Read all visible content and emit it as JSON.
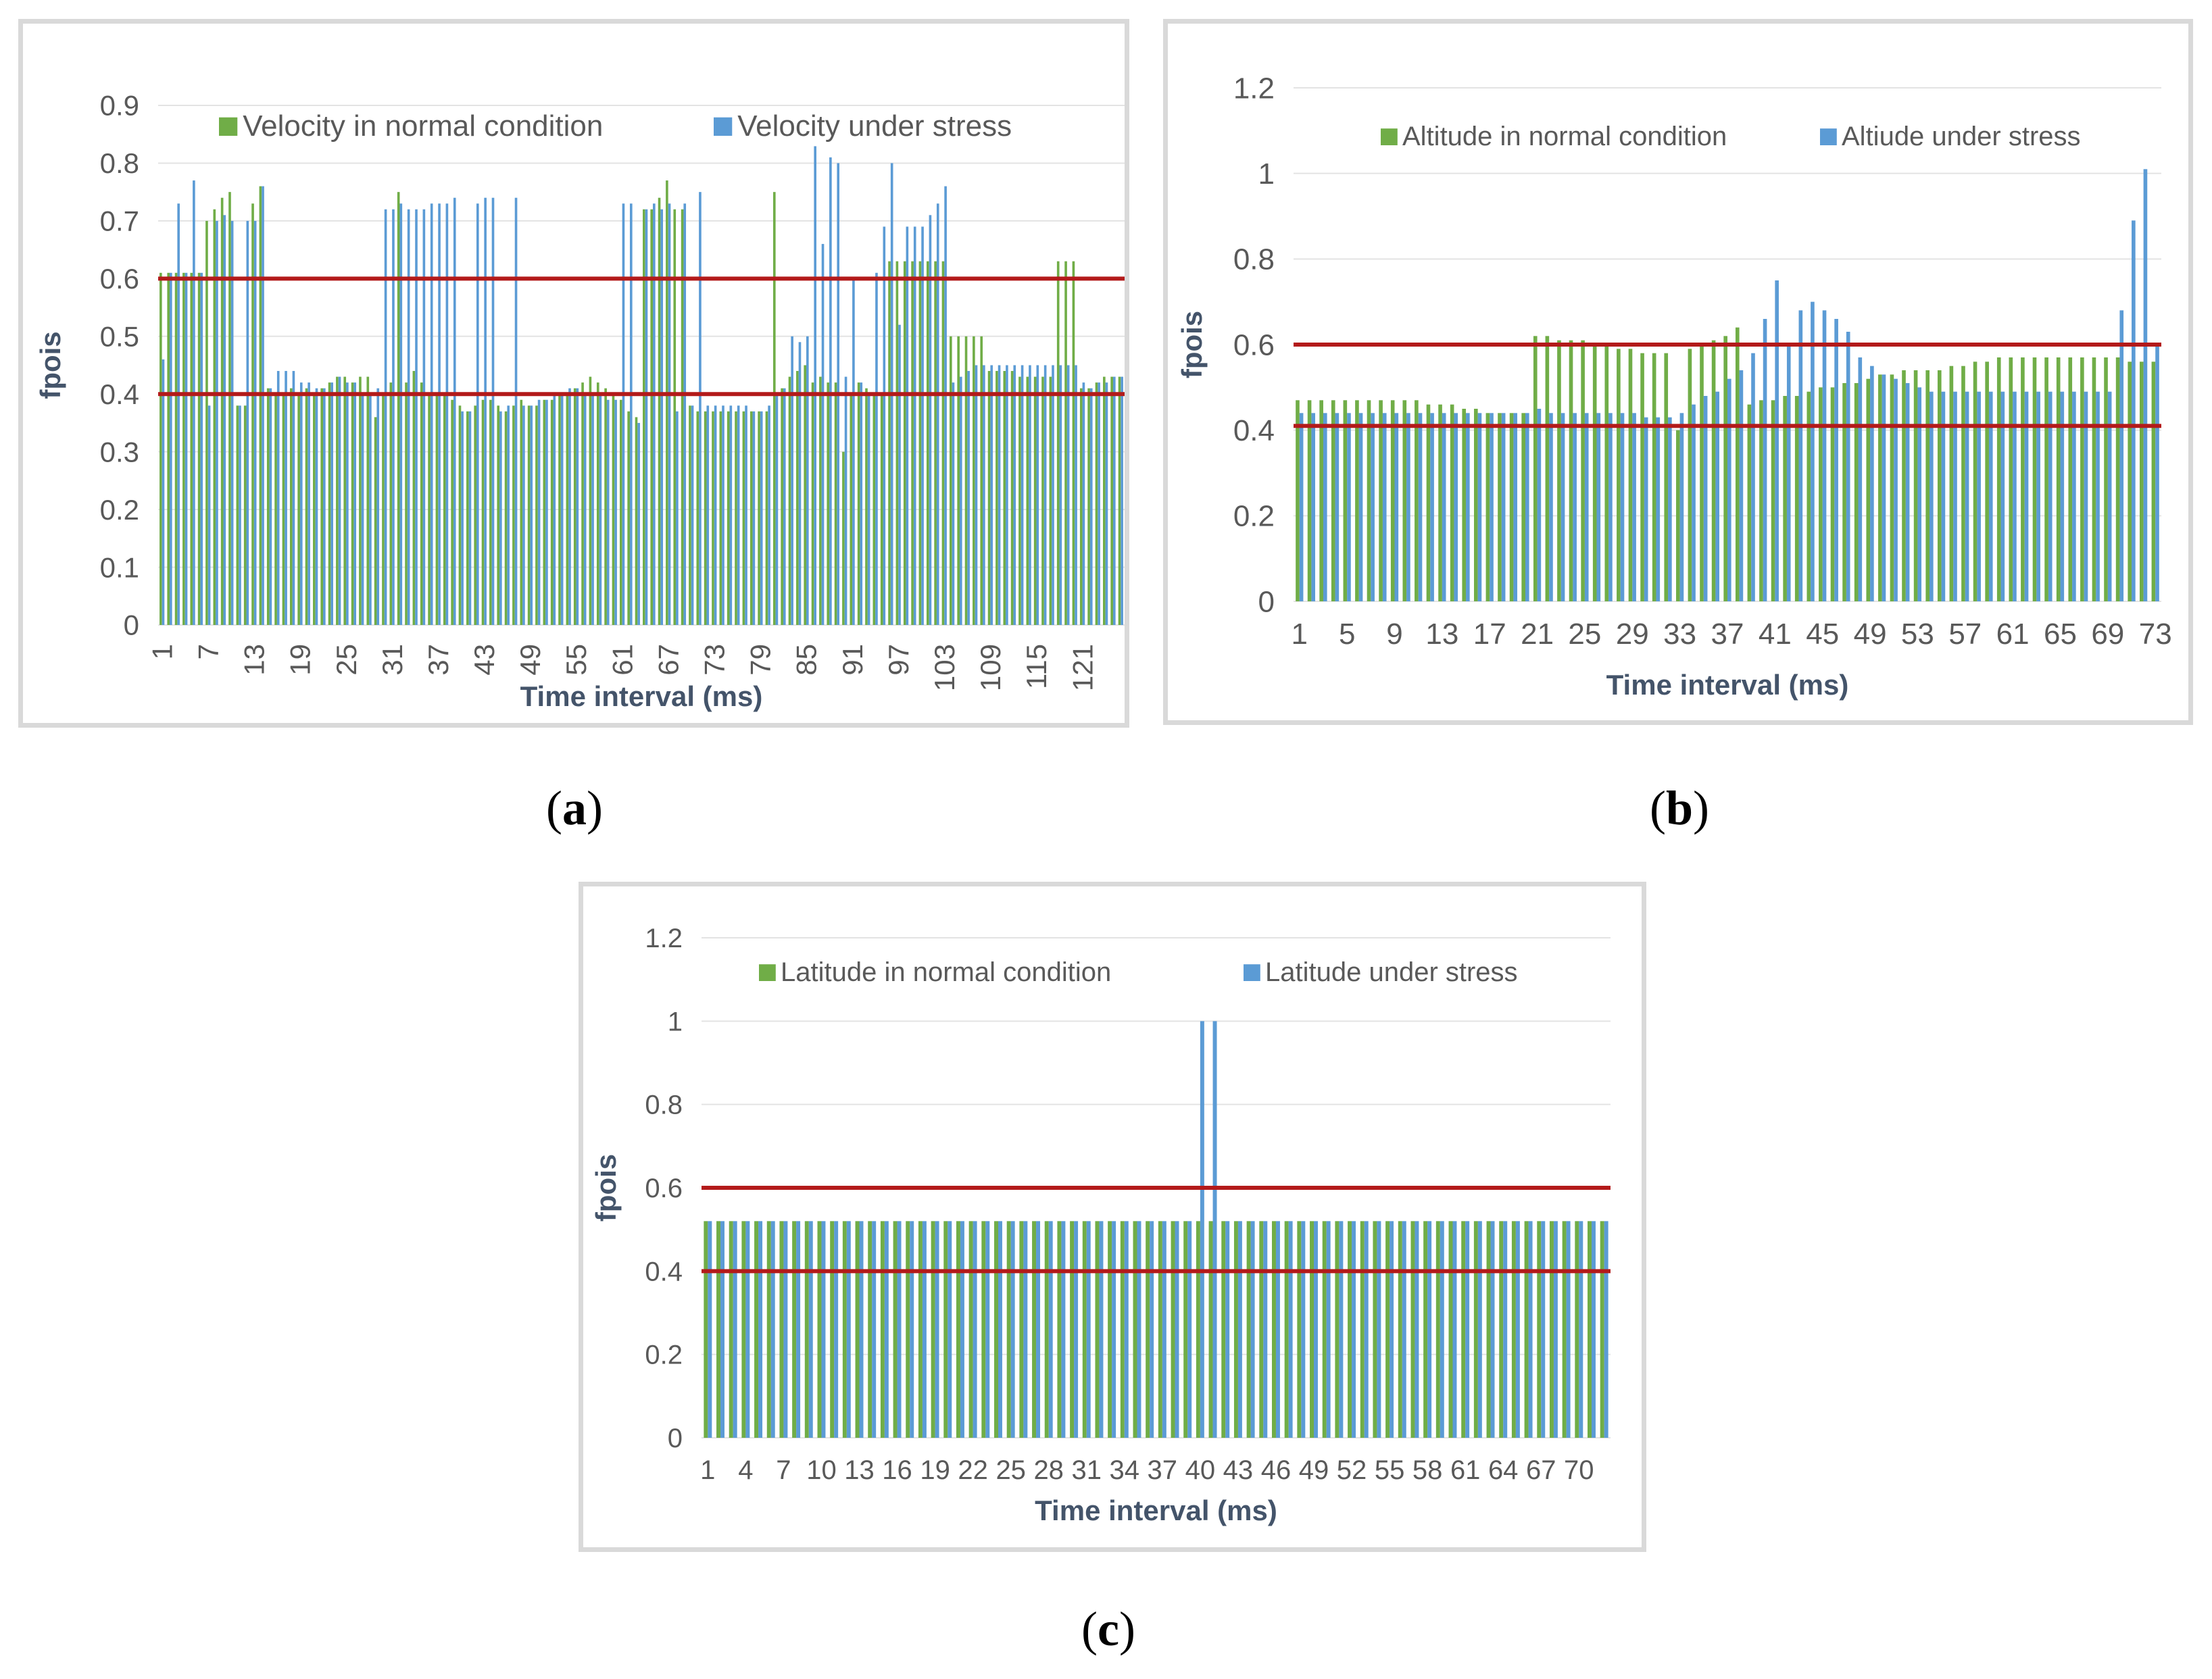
{
  "colors": {
    "normal": "#70ad47",
    "stress": "#5b9bd5",
    "threshold": "#b31a1a",
    "grid": "#e3e3e3",
    "text": "#595959",
    "axisTitle": "#44546a"
  },
  "chart_data": [
    {
      "id": "a",
      "type": "bar",
      "caption": "a",
      "xlabel": "Time interval (ms)",
      "ylabel": "fpois",
      "ylim": [
        0,
        0.9
      ],
      "yticks": [
        "0",
        "0.1",
        "0.2",
        "0.3",
        "0.4",
        "0.5",
        "0.6",
        "0.7",
        "0.8",
        "0.9"
      ],
      "xtick_labels": [
        "1",
        "7",
        "13",
        "19",
        "25",
        "31",
        "37",
        "43",
        "49",
        "55",
        "61",
        "67",
        "73",
        "79",
        "85",
        "91",
        "97",
        "103",
        "109",
        "115",
        "121"
      ],
      "xtick_every": 6,
      "thresholds": [
        0.4,
        0.6
      ],
      "legend": "top",
      "series": [
        {
          "name": "Velocity in normal condition",
          "values": [
            0.61,
            0.61,
            0.61,
            0.61,
            0.61,
            0.61,
            0.7,
            0.72,
            0.74,
            0.75,
            0.38,
            0.38,
            0.73,
            0.76,
            0.41,
            0.4,
            0.4,
            0.41,
            0.4,
            0.41,
            0.4,
            0.41,
            0.42,
            0.43,
            0.43,
            0.42,
            0.43,
            0.43,
            0.36,
            0.4,
            0.42,
            0.75,
            0.42,
            0.44,
            0.42,
            0.4,
            0.4,
            0.4,
            0.39,
            0.38,
            0.37,
            0.38,
            0.39,
            0.39,
            0.38,
            0.37,
            0.38,
            0.39,
            0.38,
            0.38,
            0.39,
            0.39,
            0.4,
            0.4,
            0.41,
            0.42,
            0.43,
            0.42,
            0.41,
            0.4,
            0.39,
            0.37,
            0.36,
            0.72,
            0.72,
            0.74,
            0.77,
            0.72,
            0.72,
            0.38,
            0.37,
            0.37,
            0.37,
            0.37,
            0.37,
            0.37,
            0.37,
            0.37,
            0.37,
            0.37,
            0.75,
            0.41,
            0.43,
            0.44,
            0.45,
            0.42,
            0.43,
            0.42,
            0.42,
            0.3,
            0.4,
            0.42,
            0.41,
            0.4,
            0.4,
            0.63,
            0.63,
            0.63,
            0.63,
            0.63,
            0.63,
            0.63,
            0.63,
            0.5,
            0.5,
            0.5,
            0.5,
            0.5,
            0.44,
            0.44,
            0.44,
            0.44,
            0.43,
            0.43,
            0.43,
            0.43,
            0.43,
            0.63,
            0.63,
            0.63,
            0.41,
            0.41,
            0.42,
            0.43,
            0.43,
            0.43
          ]
        },
        {
          "name": "Velocity under stress",
          "values": [
            0.46,
            0.61,
            0.73,
            0.61,
            0.77,
            0.61,
            0.38,
            0.7,
            0.71,
            0.7,
            0.38,
            0.7,
            0.7,
            0.76,
            0.41,
            0.44,
            0.44,
            0.44,
            0.42,
            0.42,
            0.41,
            0.41,
            0.42,
            0.43,
            0.42,
            0.42,
            0.4,
            0.4,
            0.41,
            0.72,
            0.72,
            0.73,
            0.72,
            0.72,
            0.72,
            0.73,
            0.73,
            0.73,
            0.74,
            0.37,
            0.37,
            0.73,
            0.74,
            0.74,
            0.37,
            0.38,
            0.74,
            0.38,
            0.38,
            0.39,
            0.39,
            0.4,
            0.4,
            0.41,
            0.41,
            0.4,
            0.4,
            0.4,
            0.39,
            0.39,
            0.73,
            0.73,
            0.35,
            0.72,
            0.73,
            0.72,
            0.73,
            0.37,
            0.73,
            0.38,
            0.75,
            0.38,
            0.38,
            0.38,
            0.38,
            0.38,
            0.38,
            0.37,
            0.37,
            0.38,
            0.4,
            0.41,
            0.5,
            0.49,
            0.5,
            0.85,
            0.66,
            0.81,
            0.8,
            0.43,
            0.6,
            0.42,
            0.4,
            0.61,
            0.69,
            0.8,
            0.52,
            0.69,
            0.69,
            0.69,
            0.71,
            0.73,
            0.76,
            0.42,
            0.43,
            0.44,
            0.45,
            0.45,
            0.45,
            0.45,
            0.45,
            0.45,
            0.45,
            0.45,
            0.45,
            0.45,
            0.45,
            0.45,
            0.45,
            0.45,
            0.42,
            0.41,
            0.42,
            0.42,
            0.43,
            0.43
          ]
        }
      ]
    },
    {
      "id": "b",
      "type": "bar",
      "caption": "b",
      "xlabel": "Time interval (ms)",
      "ylabel": "fpois",
      "ylim": [
        0,
        1.2
      ],
      "yticks": [
        "0",
        "0.2",
        "0.4",
        "0.6",
        "0.8",
        "1",
        "1.2"
      ],
      "xtick_labels": [
        "1",
        "5",
        "9",
        "13",
        "17",
        "21",
        "25",
        "29",
        "33",
        "37",
        "41",
        "45",
        "49",
        "53",
        "57",
        "61",
        "65",
        "69",
        "73"
      ],
      "xtick_every": 4,
      "thresholds": [
        0.41,
        0.6
      ],
      "legend": "top",
      "series": [
        {
          "name": "Altitude in normal condition",
          "values": [
            0.47,
            0.47,
            0.47,
            0.47,
            0.47,
            0.47,
            0.47,
            0.47,
            0.47,
            0.47,
            0.47,
            0.46,
            0.46,
            0.46,
            0.45,
            0.45,
            0.44,
            0.44,
            0.44,
            0.44,
            0.62,
            0.62,
            0.61,
            0.61,
            0.61,
            0.6,
            0.6,
            0.59,
            0.59,
            0.58,
            0.58,
            0.58,
            0.4,
            0.59,
            0.6,
            0.61,
            0.62,
            0.64,
            0.46,
            0.47,
            0.47,
            0.48,
            0.48,
            0.49,
            0.5,
            0.5,
            0.51,
            0.51,
            0.52,
            0.53,
            0.53,
            0.54,
            0.54,
            0.54,
            0.54,
            0.55,
            0.55,
            0.56,
            0.56,
            0.57,
            0.57,
            0.57,
            0.57,
            0.57,
            0.57,
            0.57,
            0.57,
            0.57,
            0.57,
            0.57,
            0.56,
            0.56,
            0.56
          ]
        },
        {
          "name": "Altiude under stress",
          "values": [
            0.44,
            0.44,
            0.44,
            0.44,
            0.44,
            0.44,
            0.44,
            0.44,
            0.44,
            0.44,
            0.44,
            0.44,
            0.44,
            0.44,
            0.44,
            0.44,
            0.44,
            0.44,
            0.44,
            0.44,
            0.45,
            0.44,
            0.44,
            0.44,
            0.44,
            0.44,
            0.44,
            0.44,
            0.44,
            0.43,
            0.43,
            0.43,
            0.44,
            0.46,
            0.48,
            0.49,
            0.52,
            0.54,
            0.58,
            0.66,
            0.75,
            0.6,
            0.68,
            0.7,
            0.68,
            0.66,
            0.63,
            0.57,
            0.55,
            0.53,
            0.52,
            0.51,
            0.5,
            0.49,
            0.49,
            0.49,
            0.49,
            0.49,
            0.49,
            0.49,
            0.49,
            0.49,
            0.49,
            0.49,
            0.49,
            0.49,
            0.49,
            0.49,
            0.49,
            0.68,
            0.89,
            1.01,
            0.6
          ]
        }
      ]
    },
    {
      "id": "c",
      "type": "bar",
      "caption": "c",
      "xlabel": "Time interval (ms)",
      "ylabel": "fpois",
      "ylim": [
        0,
        1.2
      ],
      "yticks": [
        "0",
        "0.2",
        "0.4",
        "0.6",
        "0.8",
        "1",
        "1.2"
      ],
      "xtick_labels": [
        "1",
        "4",
        "7",
        "10",
        "13",
        "16",
        "19",
        "22",
        "25",
        "28",
        "31",
        "34",
        "37",
        "40",
        "43",
        "46",
        "49",
        "52",
        "55",
        "58",
        "61",
        "64",
        "67",
        "70"
      ],
      "xtick_every": 3,
      "thresholds": [
        0.4,
        0.6
      ],
      "legend": "top",
      "series": [
        {
          "name": "Latitude in normal condition",
          "values": [
            0.52,
            0.52,
            0.52,
            0.52,
            0.52,
            0.52,
            0.52,
            0.52,
            0.52,
            0.52,
            0.52,
            0.52,
            0.52,
            0.52,
            0.52,
            0.52,
            0.52,
            0.52,
            0.52,
            0.52,
            0.52,
            0.52,
            0.52,
            0.52,
            0.52,
            0.52,
            0.52,
            0.52,
            0.52,
            0.52,
            0.52,
            0.52,
            0.52,
            0.52,
            0.52,
            0.52,
            0.52,
            0.52,
            0.52,
            0.52,
            0.52,
            0.52,
            0.52,
            0.52,
            0.52,
            0.52,
            0.52,
            0.52,
            0.52,
            0.52,
            0.52,
            0.52,
            0.52,
            0.52,
            0.52,
            0.52,
            0.52,
            0.52,
            0.52,
            0.52,
            0.52,
            0.52,
            0.52,
            0.52,
            0.52,
            0.52,
            0.52,
            0.52,
            0.52,
            0.52,
            0.52,
            0.52
          ]
        },
        {
          "name": "Latitude under stress",
          "values": [
            0.52,
            0.52,
            0.52,
            0.52,
            0.52,
            0.52,
            0.52,
            0.52,
            0.52,
            0.52,
            0.52,
            0.52,
            0.52,
            0.52,
            0.52,
            0.52,
            0.52,
            0.52,
            0.52,
            0.52,
            0.52,
            0.52,
            0.52,
            0.52,
            0.52,
            0.52,
            0.52,
            0.52,
            0.52,
            0.52,
            0.52,
            0.52,
            0.52,
            0.52,
            0.52,
            0.52,
            0.52,
            0.52,
            0.52,
            1.0,
            1.0,
            0.52,
            0.52,
            0.52,
            0.52,
            0.52,
            0.52,
            0.52,
            0.52,
            0.52,
            0.52,
            0.52,
            0.52,
            0.52,
            0.52,
            0.52,
            0.52,
            0.52,
            0.52,
            0.52,
            0.52,
            0.52,
            0.52,
            0.52,
            0.52,
            0.52,
            0.52,
            0.52,
            0.52,
            0.52,
            0.52,
            0.52
          ]
        }
      ]
    }
  ]
}
